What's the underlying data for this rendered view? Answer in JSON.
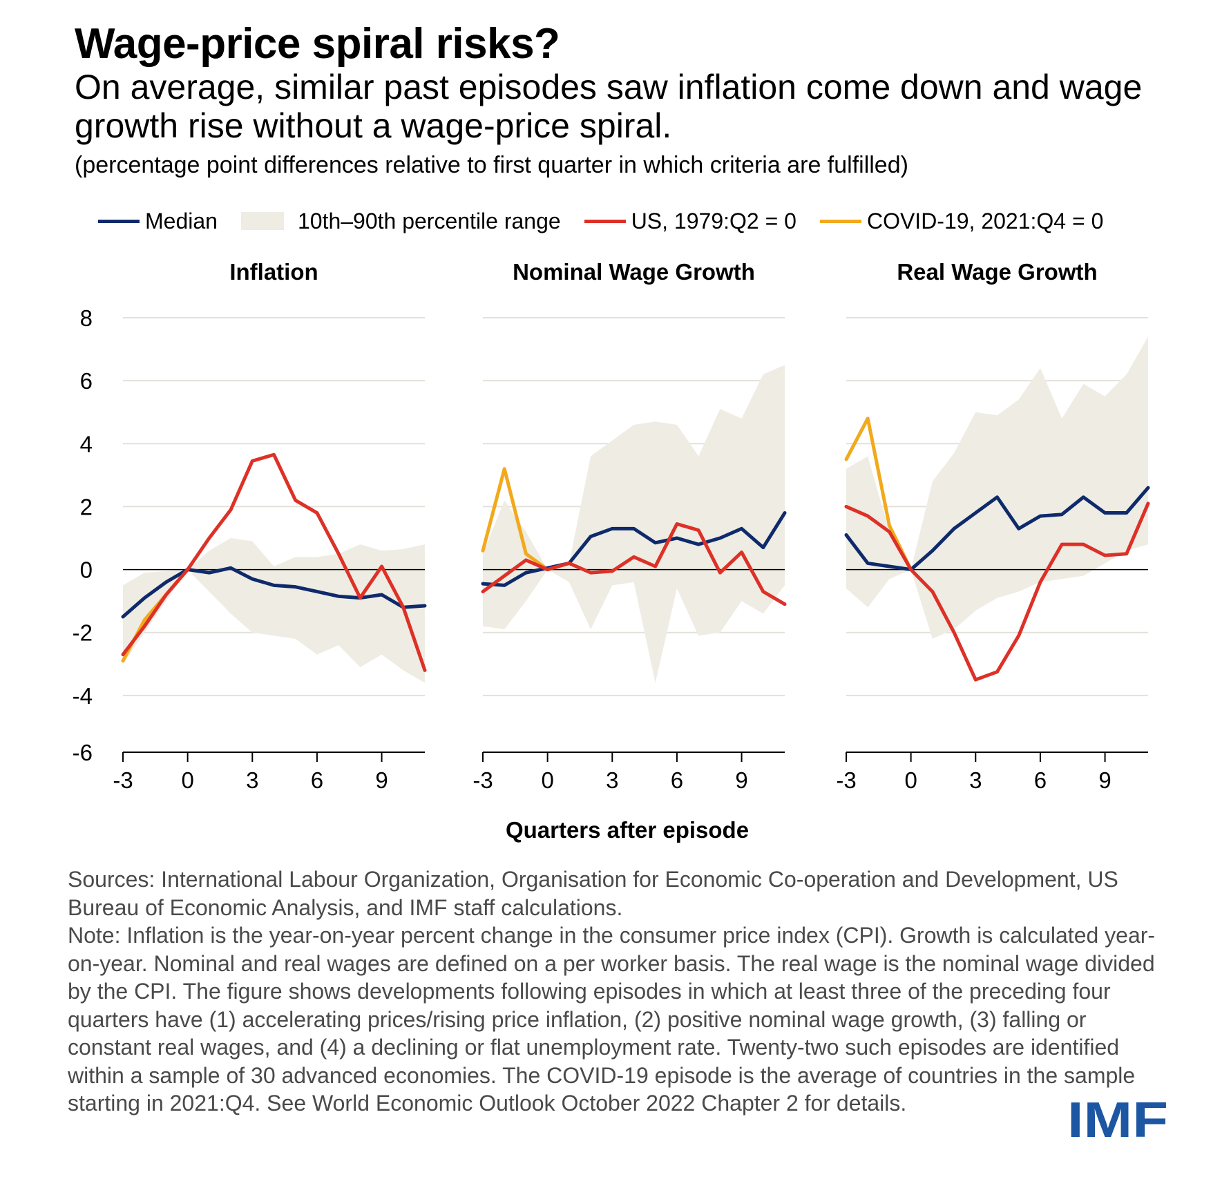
{
  "title": "Wage-price spiral risks?",
  "subtitle": "On average, similar past episodes saw inflation come down and wage growth rise without a wage-price spiral.",
  "units": "(percentage point differences relative to first quarter in which criteria are fulfilled)",
  "legend": {
    "median": "Median",
    "band": "10th–90th percentile range",
    "us": "US, 1979:Q2 = 0",
    "covid": "COVID-19, 2021:Q4 = 0"
  },
  "colors": {
    "median": "#0f2a6b",
    "band": "#eeece3",
    "us": "#dd3127",
    "covid": "#f2a91c",
    "zero_line": "#000000",
    "grid": "#e3e1da",
    "imf_blue": "#1d56a2"
  },
  "xlabel": "Quarters after episode",
  "footer": {
    "sources": "Sources: International Labour Organization, Organisation for Economic Co-operation and Development, US Bureau of Economic Analysis, and IMF staff calculations.",
    "note": "Note: Inflation is the year-on-year percent change in the consumer price index (CPI). Growth is calculated year-on-year. Nominal and real wages are defined on a per worker basis. The real wage is the nominal wage divided by the CPI. The figure shows developments following episodes in which at least three of the preceding four quarters have (1) accelerating prices/rising price inflation, (2) positive nominal wage growth, (3) falling or constant real wages, and (4) a declining or flat unemployment rate. Twenty-two such episodes are identified within a sample of 30 advanced economies. The COVID-19 episode is the average of countries in the sample starting in 2021:Q4. See World Economic Outlook October 2022 Chapter 2 for details."
  },
  "logo": "IMF",
  "chart_data": [
    {
      "type": "line",
      "title": "Inflation",
      "x": [
        -3,
        -2,
        -1,
        0,
        1,
        2,
        3,
        4,
        5,
        6,
        7,
        8,
        9,
        10,
        11
      ],
      "xticks": [
        -3,
        0,
        3,
        6,
        9
      ],
      "yticks": [
        8,
        6,
        4,
        2,
        0,
        -2,
        -4,
        -6
      ],
      "ylim": [
        -6,
        8
      ],
      "xlim": [
        -3,
        11
      ],
      "band": {
        "name": "10th–90th percentile range",
        "upper": [
          -0.5,
          -0.1,
          -0.05,
          0.0,
          0.6,
          1.0,
          0.9,
          0.1,
          0.4,
          0.4,
          0.5,
          0.8,
          0.6,
          0.65,
          0.8
        ],
        "lower": [
          -3.0,
          -2.0,
          -1.0,
          0.0,
          -0.7,
          -1.4,
          -2.0,
          -2.1,
          -2.2,
          -2.7,
          -2.4,
          -3.1,
          -2.7,
          -3.2,
          -3.6
        ]
      },
      "series": [
        {
          "name": "Median",
          "values": [
            -1.5,
            -0.9,
            -0.4,
            0.0,
            -0.1,
            0.05,
            -0.3,
            -0.5,
            -0.55,
            -0.7,
            -0.85,
            -0.9,
            -0.8,
            -1.2,
            -1.15
          ]
        },
        {
          "name": "US, 1979:Q2 = 0",
          "values": [
            -2.7,
            -1.8,
            -0.8,
            0.0,
            1.0,
            1.9,
            3.45,
            3.65,
            2.2,
            1.8,
            0.5,
            -0.9,
            0.1,
            -1.2,
            -3.2
          ]
        },
        {
          "name": "COVID-19, 2021:Q4 = 0",
          "values": [
            -2.9,
            -1.6,
            -0.8,
            0.0,
            null,
            null,
            null,
            null,
            null,
            null,
            null,
            null,
            null,
            null,
            null
          ]
        }
      ]
    },
    {
      "type": "line",
      "title": "Nominal Wage Growth",
      "x": [
        -3,
        -2,
        -1,
        0,
        1,
        2,
        3,
        4,
        5,
        6,
        7,
        8,
        9,
        10,
        11
      ],
      "xticks": [
        -3,
        0,
        3,
        6,
        9
      ],
      "ylim": [
        -6,
        8
      ],
      "xlim": [
        -3,
        11
      ],
      "band": {
        "name": "10th–90th percentile range",
        "upper": [
          0.5,
          2.2,
          1.2,
          0.0,
          0.2,
          3.6,
          4.1,
          4.6,
          4.7,
          4.6,
          3.6,
          5.1,
          4.8,
          6.2,
          6.5
        ],
        "lower": [
          -1.8,
          -1.9,
          -1.0,
          0.0,
          -0.4,
          -1.9,
          -0.5,
          -0.4,
          -3.6,
          -0.6,
          -2.1,
          -2.0,
          -1.0,
          -1.4,
          -0.5
        ]
      },
      "series": [
        {
          "name": "Median",
          "values": [
            -0.45,
            -0.5,
            -0.1,
            0.05,
            0.2,
            1.05,
            1.3,
            1.3,
            0.85,
            1.0,
            0.8,
            1.0,
            1.3,
            0.7,
            1.8
          ]
        },
        {
          "name": "US, 1979:Q2 = 0",
          "values": [
            -0.7,
            -0.2,
            0.3,
            0.0,
            0.2,
            -0.1,
            -0.05,
            0.4,
            0.1,
            1.45,
            1.25,
            -0.1,
            0.55,
            -0.7,
            -1.1
          ]
        },
        {
          "name": "COVID-19, 2021:Q4 = 0",
          "values": [
            0.6,
            3.2,
            0.5,
            0.0,
            null,
            null,
            null,
            null,
            null,
            null,
            null,
            null,
            null,
            null,
            null
          ]
        }
      ]
    },
    {
      "type": "line",
      "title": "Real Wage Growth",
      "x": [
        -3,
        -2,
        -1,
        0,
        1,
        2,
        3,
        4,
        5,
        6,
        7,
        8,
        9,
        10,
        11
      ],
      "xticks": [
        -3,
        0,
        3,
        6,
        9
      ],
      "ylim": [
        -6,
        8
      ],
      "xlim": [
        -3,
        11
      ],
      "band": {
        "name": "10th–90th percentile range",
        "upper": [
          3.2,
          3.6,
          1.2,
          0.0,
          2.8,
          3.7,
          5.0,
          4.9,
          5.4,
          6.4,
          4.8,
          5.9,
          5.5,
          6.2,
          7.4
        ],
        "lower": [
          -0.6,
          -1.2,
          -0.3,
          0.0,
          -2.2,
          -1.9,
          -1.3,
          -0.9,
          -0.7,
          -0.4,
          -0.3,
          -0.2,
          0.2,
          0.6,
          0.8
        ]
      },
      "series": [
        {
          "name": "Median",
          "values": [
            1.1,
            0.2,
            0.1,
            0.0,
            0.6,
            1.3,
            1.8,
            2.3,
            1.3,
            1.7,
            1.75,
            2.3,
            1.8,
            1.8,
            2.6
          ]
        },
        {
          "name": "US, 1979:Q2 = 0",
          "values": [
            2.0,
            1.7,
            1.2,
            0.0,
            -0.7,
            -2.0,
            -3.5,
            -3.25,
            -2.1,
            -0.4,
            0.8,
            0.8,
            0.45,
            0.5,
            2.1
          ]
        },
        {
          "name": "COVID-19, 2021:Q4 = 0",
          "values": [
            3.5,
            4.8,
            1.4,
            0.0,
            null,
            null,
            null,
            null,
            null,
            null,
            null,
            null,
            null,
            null,
            null
          ]
        }
      ]
    }
  ]
}
